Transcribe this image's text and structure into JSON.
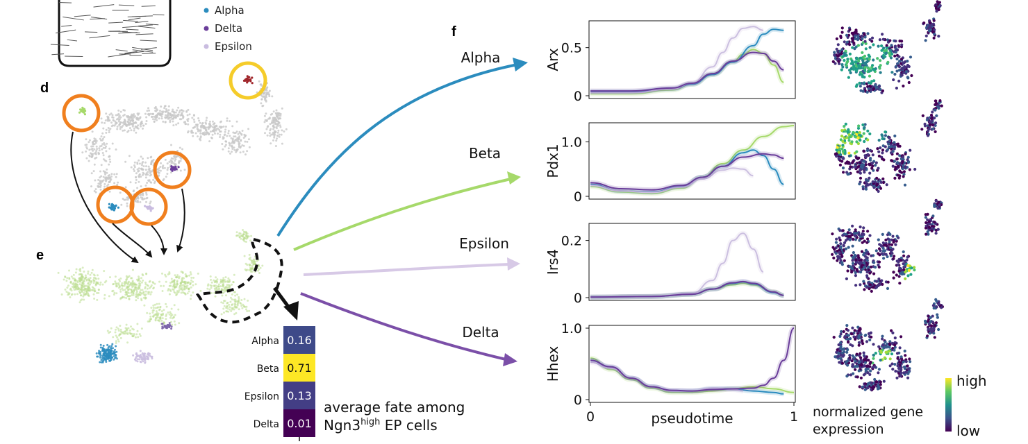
{
  "panel_labels": {
    "d": "d",
    "e": "e",
    "f": "f"
  },
  "legend": [
    {
      "name": "Alpha",
      "color": "#2b8cbe"
    },
    {
      "name": "Delta",
      "color": "#6a3d9a"
    },
    {
      "name": "Epsilon",
      "color": "#c9bce0"
    }
  ],
  "fate_arrows": [
    {
      "name": "Alpha",
      "color": "#2b8cbe"
    },
    {
      "name": "Beta",
      "color": "#a6d96a"
    },
    {
      "name": "Epsilon",
      "color": "#d7c9e6"
    },
    {
      "name": "Delta",
      "color": "#7b4fa8"
    }
  ],
  "heatmap": {
    "rows": [
      {
        "label": "Alpha",
        "value": "0.16",
        "color": "#3e4a89",
        "text_color": "#ffffff"
      },
      {
        "label": "Beta",
        "value": "0.71",
        "color": "#fde725",
        "text_color": "#111111"
      },
      {
        "label": "Epsilon",
        "value": "0.13",
        "color": "#433e85",
        "text_color": "#ffffff"
      },
      {
        "label": "Delta",
        "value": "0.01",
        "color": "#440154",
        "text_color": "#ffffff"
      }
    ],
    "caption_line1": "average fate among",
    "caption_line2_a": "Ngn3",
    "caption_line2_sup": "high",
    "caption_line2_b": " EP cells"
  },
  "colorbar": {
    "high": "high",
    "low": "low",
    "caption_line1": "normalized gene",
    "caption_line2": "expression"
  },
  "chart_data": {
    "type": "line",
    "xlabel": "pseudotime",
    "x_ticks": [
      "0",
      "1"
    ],
    "xlim": [
      0,
      1
    ],
    "series_colors": {
      "Alpha": "#2b8cbe",
      "Beta": "#a6d96a",
      "Epsilon": "#cbbfe0",
      "Delta": "#6a3d9a"
    },
    "panels": [
      {
        "gene": "Arx",
        "ylim": [
          0,
          0.75
        ],
        "yticks": [
          0,
          0.5
        ],
        "ytick_labels": [
          "0",
          "0.5"
        ],
        "series": [
          {
            "name": "Alpha",
            "x": [
              0,
              0.2,
              0.4,
              0.5,
              0.6,
              0.7,
              0.8,
              0.85,
              0.9,
              0.95
            ],
            "values": [
              0.04,
              0.04,
              0.07,
              0.12,
              0.22,
              0.35,
              0.52,
              0.64,
              0.69,
              0.68
            ]
          },
          {
            "name": "Beta",
            "x": [
              0,
              0.2,
              0.4,
              0.5,
              0.6,
              0.7,
              0.75,
              0.8,
              0.85,
              0.9,
              0.95
            ],
            "values": [
              0.02,
              0.02,
              0.06,
              0.12,
              0.22,
              0.35,
              0.43,
              0.48,
              0.44,
              0.32,
              0.14
            ]
          },
          {
            "name": "Epsilon",
            "x": [
              0,
              0.2,
              0.4,
              0.5,
              0.6,
              0.65,
              0.7,
              0.75,
              0.8,
              0.85
            ],
            "values": [
              0.03,
              0.03,
              0.07,
              0.13,
              0.3,
              0.45,
              0.6,
              0.7,
              0.72,
              0.68
            ]
          },
          {
            "name": "Delta",
            "x": [
              0,
              0.2,
              0.4,
              0.5,
              0.6,
              0.7,
              0.8,
              0.85,
              0.9,
              0.95
            ],
            "values": [
              0.05,
              0.05,
              0.08,
              0.13,
              0.23,
              0.36,
              0.45,
              0.44,
              0.36,
              0.27
            ]
          }
        ]
      },
      {
        "gene": "Pdx1",
        "ylim": [
          0,
          1.3
        ],
        "yticks": [
          0,
          1.0
        ],
        "ytick_labels": [
          "0",
          "1.0"
        ],
        "series": [
          {
            "name": "Alpha",
            "x": [
              0,
              0.15,
              0.3,
              0.45,
              0.55,
              0.65,
              0.75,
              0.8,
              0.85,
              0.9,
              0.95
            ],
            "values": [
              0.22,
              0.1,
              0.08,
              0.18,
              0.35,
              0.55,
              0.8,
              0.85,
              0.75,
              0.5,
              0.22
            ]
          },
          {
            "name": "Beta",
            "x": [
              0,
              0.15,
              0.3,
              0.45,
              0.55,
              0.65,
              0.75,
              0.85,
              0.95,
              1.0
            ],
            "values": [
              0.18,
              0.08,
              0.05,
              0.15,
              0.35,
              0.6,
              0.85,
              1.1,
              1.28,
              1.3
            ]
          },
          {
            "name": "Epsilon",
            "x": [
              0,
              0.15,
              0.3,
              0.45,
              0.55,
              0.65,
              0.7,
              0.75,
              0.8
            ],
            "values": [
              0.2,
              0.1,
              0.07,
              0.17,
              0.32,
              0.48,
              0.52,
              0.5,
              0.38
            ]
          },
          {
            "name": "Delta",
            "x": [
              0,
              0.15,
              0.3,
              0.45,
              0.55,
              0.65,
              0.75,
              0.85,
              0.9,
              0.95
            ],
            "values": [
              0.25,
              0.14,
              0.12,
              0.2,
              0.35,
              0.55,
              0.72,
              0.78,
              0.76,
              0.7
            ]
          }
        ]
      },
      {
        "gene": "Irs4",
        "ylim": [
          0,
          0.25
        ],
        "yticks": [
          0,
          0.2
        ],
        "ytick_labels": [
          "0",
          "0.2"
        ],
        "series": [
          {
            "name": "Alpha",
            "x": [
              0,
              0.3,
              0.5,
              0.6,
              0.7,
              0.75,
              0.8,
              0.9,
              0.95
            ],
            "values": [
              0.002,
              0.004,
              0.012,
              0.03,
              0.05,
              0.055,
              0.048,
              0.018,
              0.008
            ]
          },
          {
            "name": "Beta",
            "x": [
              0,
              0.3,
              0.5,
              0.6,
              0.7,
              0.75,
              0.8,
              0.9,
              0.95
            ],
            "values": [
              0.002,
              0.004,
              0.012,
              0.03,
              0.045,
              0.05,
              0.045,
              0.02,
              0.008
            ]
          },
          {
            "name": "Epsilon",
            "x": [
              0,
              0.3,
              0.5,
              0.6,
              0.65,
              0.7,
              0.75,
              0.8,
              0.85
            ],
            "values": [
              0.002,
              0.004,
              0.015,
              0.06,
              0.12,
              0.2,
              0.225,
              0.17,
              0.09
            ]
          },
          {
            "name": "Delta",
            "x": [
              0,
              0.3,
              0.5,
              0.6,
              0.7,
              0.75,
              0.8,
              0.9,
              0.95
            ],
            "values": [
              0.002,
              0.004,
              0.012,
              0.03,
              0.052,
              0.056,
              0.05,
              0.02,
              0.008
            ]
          }
        ]
      },
      {
        "gene": "Hhex",
        "ylim": [
          0,
          1.0
        ],
        "yticks": [
          0,
          1.0
        ],
        "ytick_labels": [
          "0",
          "1.0"
        ],
        "series": [
          {
            "name": "Alpha",
            "x": [
              0,
              0.1,
              0.2,
              0.3,
              0.4,
              0.5,
              0.6,
              0.7,
              0.8,
              0.9,
              0.95
            ],
            "values": [
              0.55,
              0.45,
              0.3,
              0.18,
              0.12,
              0.12,
              0.15,
              0.15,
              0.12,
              0.1,
              0.08
            ]
          },
          {
            "name": "Beta",
            "x": [
              0,
              0.1,
              0.2,
              0.3,
              0.4,
              0.5,
              0.6,
              0.7,
              0.8,
              0.9,
              1.0
            ],
            "values": [
              0.58,
              0.42,
              0.28,
              0.16,
              0.1,
              0.1,
              0.12,
              0.15,
              0.18,
              0.15,
              0.1
            ]
          },
          {
            "name": "Epsilon",
            "x": [
              0,
              0.1,
              0.2,
              0.3,
              0.4,
              0.5,
              0.6,
              0.7,
              0.75
            ],
            "values": [
              0.52,
              0.44,
              0.3,
              0.18,
              0.12,
              0.12,
              0.16,
              0.14,
              0.12
            ]
          },
          {
            "name": "Delta",
            "x": [
              0,
              0.1,
              0.2,
              0.3,
              0.4,
              0.5,
              0.6,
              0.7,
              0.8,
              0.85,
              0.9,
              0.95,
              1.0
            ],
            "values": [
              0.55,
              0.46,
              0.3,
              0.18,
              0.13,
              0.12,
              0.14,
              0.15,
              0.16,
              0.2,
              0.3,
              0.55,
              1.0
            ]
          }
        ]
      }
    ]
  }
}
